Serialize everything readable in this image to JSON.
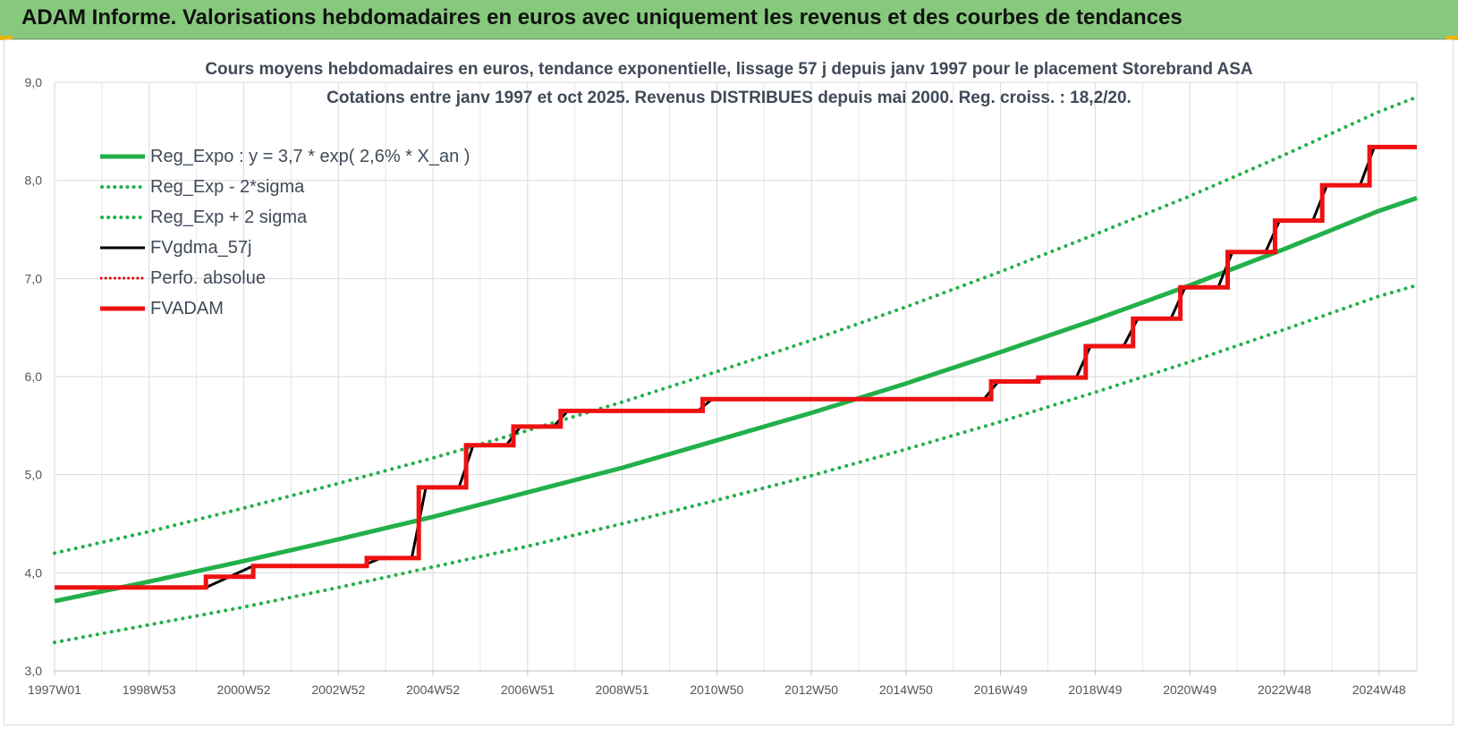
{
  "header": {
    "title": "ADAM Informe. Valorisations hebdomadaires en euros avec uniquement les revenus et des courbes de tendances"
  },
  "chart_data": {
    "type": "line",
    "title_line1": "Cours moyens hebdomadaires en euros, tendance exponentielle, lissage 57 j depuis janv 1997 pour le placement Storebrand ASA",
    "title_line2": "Cotations entre janv 1997 et oct 2025. Revenus DISTRIBUES depuis mai 2000. Reg. croiss. : 18,2/20.",
    "xlabel": "",
    "ylabel": "",
    "ylim": [
      3.0,
      9.0
    ],
    "xlim": [
      1997.0,
      2025.8
    ],
    "grid": true,
    "legend_position": "top-left",
    "y_ticks": [
      "3,0",
      "4,0",
      "5,0",
      "6,0",
      "7,0",
      "8,0",
      "9,0"
    ],
    "x_ticks": [
      {
        "label": "1997W01",
        "x": 1997.0
      },
      {
        "label": "1998W53",
        "x": 1999.0
      },
      {
        "label": "2000W52",
        "x": 2001.0
      },
      {
        "label": "2002W52",
        "x": 2003.0
      },
      {
        "label": "2004W52",
        "x": 2005.0
      },
      {
        "label": "2006W51",
        "x": 2007.0
      },
      {
        "label": "2008W51",
        "x": 2009.0
      },
      {
        "label": "2010W50",
        "x": 2011.0
      },
      {
        "label": "2012W50",
        "x": 2013.0
      },
      {
        "label": "2014W50",
        "x": 2015.0
      },
      {
        "label": "2016W49",
        "x": 2017.0
      },
      {
        "label": "2018W49",
        "x": 2019.0
      },
      {
        "label": "2020W49",
        "x": 2021.0
      },
      {
        "label": "2022W48",
        "x": 2023.0
      },
      {
        "label": "2024W48",
        "x": 2025.0
      }
    ],
    "series": [
      {
        "name": "Reg_Expo : y = 3,7 * exp( 2,6% *  X_an )",
        "color": "#22b04a",
        "style": "solid",
        "key": "reg",
        "x": [
          1997.0,
          1999.0,
          2001.0,
          2003.0,
          2005.0,
          2007.0,
          2009.0,
          2011.0,
          2013.0,
          2015.0,
          2017.0,
          2019.0,
          2021.0,
          2023.0,
          2025.0,
          2025.8
        ],
        "values": [
          3.71,
          3.91,
          4.12,
          4.34,
          4.57,
          4.82,
          5.07,
          5.35,
          5.63,
          5.93,
          6.25,
          6.58,
          6.93,
          7.3,
          7.69,
          7.82
        ]
      },
      {
        "name": "Reg_Exp - 2*sigma",
        "color": "#22b04a",
        "style": "dotted",
        "key": "low",
        "x": [
          1997.0,
          1999.0,
          2001.0,
          2003.0,
          2005.0,
          2007.0,
          2009.0,
          2011.0,
          2013.0,
          2015.0,
          2017.0,
          2019.0,
          2021.0,
          2023.0,
          2025.0,
          2025.8
        ],
        "values": [
          3.29,
          3.47,
          3.65,
          3.85,
          4.06,
          4.27,
          4.5,
          4.74,
          4.99,
          5.26,
          5.54,
          5.84,
          6.15,
          6.48,
          6.82,
          6.93
        ]
      },
      {
        "name": "Reg_Exp + 2 sigma",
        "color": "#22b04a",
        "style": "dotted",
        "key": "high",
        "x": [
          1997.0,
          1999.0,
          2001.0,
          2003.0,
          2005.0,
          2007.0,
          2009.0,
          2011.0,
          2013.0,
          2015.0,
          2017.0,
          2019.0,
          2021.0,
          2023.0,
          2025.0,
          2025.8
        ],
        "values": [
          4.2,
          4.42,
          4.66,
          4.91,
          5.17,
          5.45,
          5.74,
          6.05,
          6.37,
          6.71,
          7.07,
          7.45,
          7.84,
          8.26,
          8.7,
          8.85
        ]
      },
      {
        "name": "FVgdma_57j",
        "color": "#000000",
        "style": "solid",
        "key": "gdma",
        "x": [
          1997.0,
          2000.2,
          2000.7,
          2001.2,
          2003.5,
          2003.9,
          2004.55,
          2004.85,
          2005.55,
          2005.85,
          2006.55,
          2006.85,
          2007.55,
          2007.85,
          2010.6,
          2010.9,
          2016.65,
          2016.95,
          2017.65,
          2017.95,
          2018.6,
          2018.9,
          2019.6,
          2019.9,
          2020.6,
          2020.9,
          2021.6,
          2021.9,
          2022.6,
          2022.9,
          2023.6,
          2023.9,
          2024.6,
          2024.9,
          2025.5,
          2025.8
        ],
        "values": [
          3.85,
          3.85,
          3.96,
          4.07,
          4.07,
          4.15,
          4.15,
          4.87,
          4.87,
          5.3,
          5.3,
          5.49,
          5.49,
          5.65,
          5.65,
          5.77,
          5.77,
          5.95,
          5.95,
          5.99,
          5.99,
          6.31,
          6.31,
          6.59,
          6.59,
          6.91,
          6.91,
          7.27,
          7.27,
          7.59,
          7.59,
          7.95,
          7.95,
          8.34,
          8.34,
          8.34
        ]
      },
      {
        "name": "Perfo. absolue",
        "color": "#e00000",
        "style": "dotted",
        "key": "perfo",
        "x": [],
        "values": []
      },
      {
        "name": "FVADAM",
        "color": "#ee1111",
        "style": "solid",
        "key": "adam",
        "x": [
          1997.0,
          2000.2,
          2000.2,
          2001.2,
          2001.2,
          2003.6,
          2003.6,
          2004.7,
          2004.7,
          2005.7,
          2005.7,
          2006.7,
          2006.7,
          2007.7,
          2007.7,
          2010.7,
          2010.7,
          2016.8,
          2016.8,
          2017.8,
          2017.8,
          2018.8,
          2018.8,
          2019.8,
          2019.8,
          2020.8,
          2020.8,
          2021.8,
          2021.8,
          2022.8,
          2022.8,
          2023.8,
          2023.8,
          2024.8,
          2024.8,
          2025.8
        ],
        "values": [
          3.85,
          3.85,
          3.96,
          3.96,
          4.07,
          4.07,
          4.15,
          4.15,
          4.87,
          4.87,
          5.3,
          5.3,
          5.49,
          5.49,
          5.65,
          5.65,
          5.77,
          5.77,
          5.95,
          5.95,
          5.99,
          5.99,
          6.31,
          6.31,
          6.59,
          6.59,
          6.91,
          6.91,
          7.27,
          7.27,
          7.59,
          7.59,
          7.95,
          7.95,
          8.34,
          8.34
        ]
      }
    ]
  }
}
